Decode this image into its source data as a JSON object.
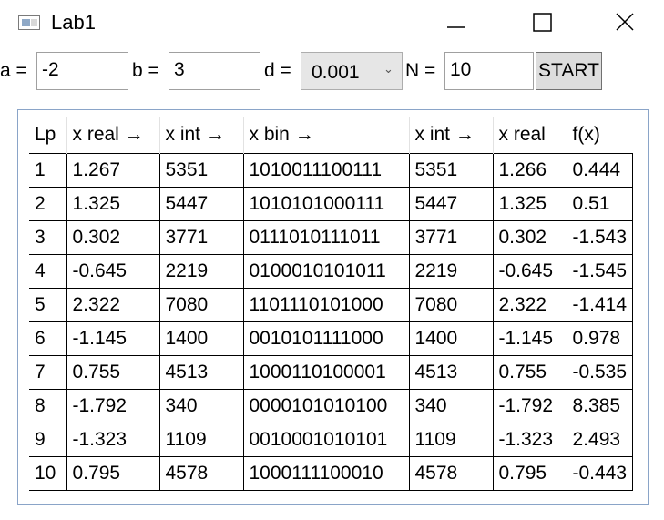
{
  "window": {
    "title": "Lab1",
    "icon": "app-window-icon",
    "controls": [
      "minimize-icon",
      "maximize-icon",
      "close-icon"
    ]
  },
  "params": {
    "a_label": "a =",
    "a_value": "-2",
    "b_label": "b =",
    "b_value": "3",
    "d_label": "d =",
    "d_value": "0.001",
    "n_label": "N =",
    "n_value": "10",
    "start_label": "START"
  },
  "table": {
    "columns": [
      "Lp",
      "x real →",
      "x int →",
      "x bin →",
      "x int →",
      "x real",
      "f(x)"
    ],
    "rows": [
      [
        "1",
        "1.267",
        "5351",
        "1010011100111",
        "5351",
        "1.266",
        "0.444"
      ],
      [
        "2",
        "1.325",
        "5447",
        "1010101000111",
        "5447",
        "1.325",
        "0.51"
      ],
      [
        "3",
        "0.302",
        "3771",
        "0111010111011",
        "3771",
        "0.302",
        "-1.543"
      ],
      [
        "4",
        "-0.645",
        "2219",
        "0100010101011",
        "2219",
        "-0.645",
        "-1.545"
      ],
      [
        "5",
        "2.322",
        "7080",
        "1101110101000",
        "7080",
        "2.322",
        "-1.414"
      ],
      [
        "6",
        "-1.145",
        "1400",
        "0010101111000",
        "1400",
        "-1.145",
        "0.978"
      ],
      [
        "7",
        "0.755",
        "4513",
        "1000110100001",
        "4513",
        "0.755",
        "-0.535"
      ],
      [
        "8",
        "-1.792",
        "340",
        "0000101010100",
        "340",
        "-1.792",
        "8.385"
      ],
      [
        "9",
        "-1.323",
        "1109",
        "0010001010101",
        "1109",
        "-1.323",
        "2.493"
      ],
      [
        "10",
        "0.795",
        "4578",
        "1000111100010",
        "4578",
        "0.795",
        "-0.443"
      ]
    ]
  }
}
